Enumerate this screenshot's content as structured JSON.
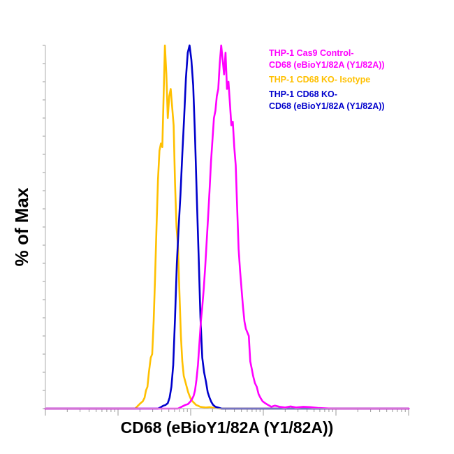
{
  "chart_data": {
    "type": "line",
    "title": "",
    "xlabel": "CD68 (eBioY1/82A (Y1/82A))",
    "ylabel": "% of Max",
    "x_scale": "log",
    "y_range": [
      0,
      100
    ],
    "grid": false,
    "legend_position": "top-right",
    "legend": [
      {
        "lines": [
          "THP-1 Cas9 Control-",
          "CD68 (eBioY1/82A (Y1/82A))"
        ],
        "color": "#ff00ff"
      },
      {
        "lines": [
          "THP-1 CD68 KO- Isotype"
        ],
        "color": "#ffc000"
      },
      {
        "lines": [
          "THP-1 CD68 KO-",
          "CD68 (eBioY1/82A (Y1/82A))"
        ],
        "color": "#0000cc"
      }
    ],
    "series": [
      {
        "color": "#ffc000",
        "x": [
          0,
          0.247,
          0.255,
          0.262,
          0.268,
          0.273,
          0.277,
          0.281,
          0.285,
          0.29,
          0.294,
          0.298,
          0.302,
          0.306,
          0.31,
          0.314,
          0.318,
          0.322,
          0.326,
          0.329,
          0.333,
          0.337,
          0.341,
          0.345,
          0.349,
          0.353,
          0.357,
          0.361,
          0.365,
          0.369,
          0.373,
          0.377,
          0.381,
          0.385,
          0.389,
          0.393,
          0.397,
          0.401,
          0.405,
          0.41,
          0.415,
          0.42,
          0.426,
          0.433,
          0.442,
          0.452,
          0.465,
          0.48,
          1
        ],
        "y": [
          0,
          0,
          0.8,
          1.5,
          2,
          3,
          5,
          6,
          10,
          14,
          15,
          24,
          36,
          50,
          63,
          71,
          73,
          72,
          88,
          100,
          92,
          80,
          86,
          88,
          83,
          78,
          62,
          50,
          45,
          32,
          20,
          13,
          9,
          7.5,
          6,
          4.5,
          3.5,
          2.5,
          2,
          1.5,
          1,
          0.8,
          0.5,
          0.4,
          0.3,
          0.4,
          0.2,
          0,
          0
        ]
      },
      {
        "color": "#0000cc",
        "x": [
          0,
          0.31,
          0.318,
          0.325,
          0.331,
          0.337,
          0.342,
          0.347,
          0.352,
          0.357,
          0.362,
          0.367,
          0.372,
          0.377,
          0.382,
          0.387,
          0.392,
          0.397,
          0.402,
          0.407,
          0.412,
          0.417,
          0.422,
          0.427,
          0.432,
          0.437,
          0.442,
          0.447,
          0.452,
          0.457,
          0.462,
          0.468,
          0.475,
          0.485,
          1
        ],
        "y": [
          0,
          0,
          0.4,
          0.8,
          1,
          1.5,
          3,
          6,
          12,
          25,
          40,
          50,
          59,
          70,
          80,
          91,
          98,
          100,
          96,
          89,
          75,
          58,
          42,
          25,
          14,
          10,
          7.5,
          4.5,
          3,
          1.8,
          1,
          0.5,
          0.3,
          0,
          0
        ]
      },
      {
        "color": "#ff00ff",
        "x": [
          0,
          0.365,
          0.375,
          0.385,
          0.392,
          0.398,
          0.403,
          0.408,
          0.412,
          0.416,
          0.42,
          0.424,
          0.428,
          0.432,
          0.436,
          0.44,
          0.444,
          0.448,
          0.452,
          0.456,
          0.46,
          0.464,
          0.468,
          0.472,
          0.476,
          0.48,
          0.484,
          0.488,
          0.492,
          0.496,
          0.5,
          0.504,
          0.508,
          0.512,
          0.516,
          0.52,
          0.524,
          0.528,
          0.532,
          0.536,
          0.54,
          0.544,
          0.548,
          0.552,
          0.556,
          0.56,
          0.564,
          0.568,
          0.572,
          0.577,
          0.582,
          0.587,
          0.592,
          0.598,
          0.605,
          0.613,
          0.622,
          0.632,
          0.645,
          0.66,
          0.675,
          0.69,
          0.71,
          0.73,
          0.75,
          0.77,
          0.79,
          1
        ],
        "y": [
          0,
          0,
          0.5,
          1,
          1.2,
          1.8,
          2.5,
          3.5,
          5,
          8,
          12,
          18,
          24,
          28,
          33,
          39,
          46,
          53,
          60,
          68,
          74,
          80,
          82,
          86,
          88,
          95,
          100,
          96,
          92,
          98,
          88,
          90,
          84,
          78,
          79,
          72,
          67,
          55,
          44,
          38,
          33,
          28,
          24,
          22,
          21,
          20,
          13,
          11,
          9,
          7,
          6,
          4,
          3,
          2,
          1.5,
          1,
          0.5,
          0.8,
          0.5,
          0.3,
          0.6,
          0.3,
          0.5,
          0.4,
          0.2,
          0.1,
          0,
          0
        ]
      }
    ]
  }
}
